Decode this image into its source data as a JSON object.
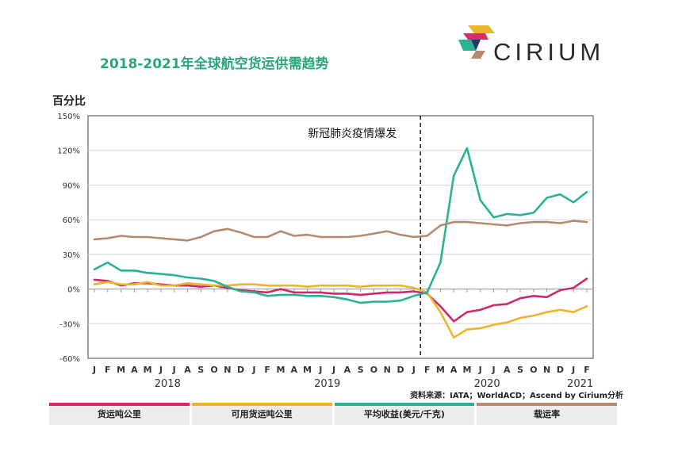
{
  "title": "2018-2021年全球航空货运供需趋势",
  "logo_text": "CIRIUM",
  "y_axis_title": "百分比",
  "source": "资料来源：IATA；WorldACD；Ascend by Cirium分析",
  "chart_data": {
    "type": "line",
    "title": "2018-2021年全球航空货运供需趋势",
    "ylabel": "百分比",
    "ylim": [
      -60,
      150
    ],
    "yticks": [
      -60,
      -30,
      0,
      30,
      60,
      90,
      120,
      150
    ],
    "ytick_labels": [
      "-60%",
      "-30%",
      "0%",
      "30%",
      "60%",
      "90%",
      "120%",
      "150%"
    ],
    "grid": true,
    "x": [
      "J",
      "F",
      "M",
      "A",
      "M",
      "J",
      "J",
      "A",
      "S",
      "O",
      "N",
      "D",
      "J",
      "F",
      "M",
      "A",
      "M",
      "J",
      "J",
      "A",
      "S",
      "O",
      "N",
      "D",
      "J",
      "F",
      "M",
      "A",
      "M",
      "J",
      "J",
      "A",
      "S",
      "O",
      "N",
      "D",
      "J",
      "F"
    ],
    "year_labels": [
      {
        "label": "2018",
        "index": 5.5
      },
      {
        "label": "2019",
        "index": 17.5
      },
      {
        "label": "2020",
        "index": 29.5
      },
      {
        "label": "2021",
        "index": 36.5
      }
    ],
    "annotation": {
      "text": "新冠肺炎疫情爆发",
      "x_index": 25
    },
    "series": [
      {
        "name": "货运吨公里",
        "color": "#cc2a6b",
        "values": [
          8,
          7,
          3,
          5,
          5,
          4,
          3,
          3,
          2,
          3,
          1,
          -1,
          -2,
          -3,
          0,
          -3,
          -3,
          -3,
          -4,
          -4,
          -5,
          -4,
          -3,
          -3,
          -2,
          -4,
          -15,
          -28,
          -20,
          -18,
          -14,
          -13,
          -8,
          -6,
          -7,
          -1,
          1,
          9
        ]
      },
      {
        "name": "可用货运吨公里",
        "color": "#edb32d",
        "values": [
          4,
          6,
          4,
          4,
          6,
          3,
          3,
          5,
          4,
          3,
          3,
          4,
          4,
          3,
          3,
          3,
          2,
          3,
          3,
          3,
          2,
          3,
          3,
          3,
          1,
          -3,
          -20,
          -42,
          -35,
          -34,
          -31,
          -29,
          -25,
          -23,
          -20,
          -18,
          -20,
          -15
        ]
      },
      {
        "name": "平均收益(美元/千克)",
        "color": "#2bb293",
        "values": [
          17,
          23,
          16,
          16,
          14,
          13,
          12,
          10,
          9,
          7,
          2,
          -2,
          -3,
          -6,
          -5,
          -5,
          -6,
          -6,
          -7,
          -9,
          -12,
          -11,
          -11,
          -10,
          -6,
          -3,
          23,
          98,
          122,
          77,
          62,
          65,
          64,
          66,
          79,
          82,
          75,
          84
        ]
      },
      {
        "name": "载运率",
        "color": "#b58a6e",
        "values": [
          43,
          44,
          46,
          45,
          45,
          44,
          43,
          42,
          45,
          50,
          52,
          49,
          45,
          45,
          50,
          46,
          47,
          45,
          45,
          45,
          46,
          48,
          50,
          47,
          45,
          46,
          55,
          58,
          58,
          57,
          56,
          55,
          57,
          58,
          58,
          57,
          59,
          58
        ]
      }
    ]
  }
}
